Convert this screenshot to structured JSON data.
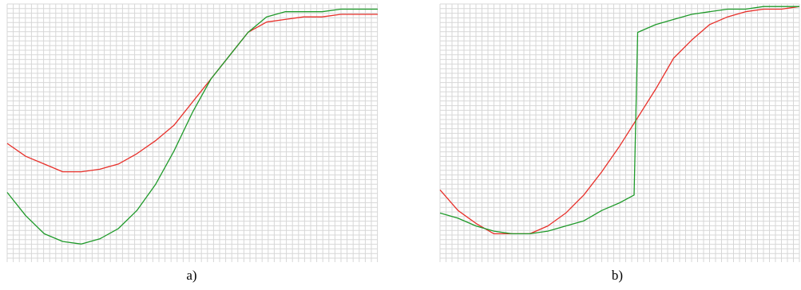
{
  "captions": {
    "a": "a)",
    "b": "b)"
  },
  "colors": {
    "red": "#e8302a",
    "green": "#1f9a2a",
    "grid": "#d7d7d7",
    "background": "#ffffff"
  },
  "chart_data": [
    {
      "type": "line",
      "title": "",
      "xlabel": "",
      "ylabel": "",
      "xlim": [
        0,
        1
      ],
      "ylim": [
        0,
        1
      ],
      "grid": true,
      "legend": "none",
      "series": [
        {
          "color": "#e8302a",
          "x": [
            0,
            0.05,
            0.1,
            0.15,
            0.2,
            0.25,
            0.3,
            0.35,
            0.4,
            0.45,
            0.5,
            0.55,
            0.6,
            0.65,
            0.7,
            0.75,
            0.8,
            0.85,
            0.9,
            0.95,
            1.0
          ],
          "y": [
            0.46,
            0.41,
            0.38,
            0.35,
            0.35,
            0.36,
            0.38,
            0.42,
            0.47,
            0.53,
            0.62,
            0.71,
            0.8,
            0.89,
            0.93,
            0.94,
            0.95,
            0.95,
            0.96,
            0.96,
            0.96
          ]
        },
        {
          "color": "#1f9a2a",
          "x": [
            0,
            0.05,
            0.1,
            0.15,
            0.2,
            0.25,
            0.3,
            0.35,
            0.4,
            0.45,
            0.5,
            0.55,
            0.6,
            0.65,
            0.7,
            0.75,
            0.8,
            0.85,
            0.9,
            0.95,
            1.0
          ],
          "y": [
            0.27,
            0.18,
            0.11,
            0.08,
            0.07,
            0.09,
            0.13,
            0.2,
            0.3,
            0.43,
            0.58,
            0.71,
            0.8,
            0.89,
            0.95,
            0.97,
            0.97,
            0.97,
            0.98,
            0.98,
            0.98
          ]
        }
      ]
    },
    {
      "type": "line",
      "title": "",
      "xlabel": "",
      "ylabel": "",
      "xlim": [
        0,
        1
      ],
      "ylim": [
        0,
        1
      ],
      "grid": true,
      "legend": "none",
      "series": [
        {
          "color": "#e8302a",
          "x": [
            0,
            0.05,
            0.1,
            0.15,
            0.2,
            0.25,
            0.3,
            0.35,
            0.4,
            0.45,
            0.5,
            0.55,
            0.6,
            0.65,
            0.7,
            0.75,
            0.8,
            0.85,
            0.9,
            0.95,
            1.0
          ],
          "y": [
            0.28,
            0.2,
            0.15,
            0.11,
            0.11,
            0.11,
            0.14,
            0.19,
            0.26,
            0.35,
            0.45,
            0.56,
            0.67,
            0.79,
            0.86,
            0.92,
            0.95,
            0.97,
            0.98,
            0.98,
            0.99
          ]
        },
        {
          "color": "#1f9a2a",
          "x": [
            0,
            0.05,
            0.1,
            0.15,
            0.2,
            0.25,
            0.3,
            0.35,
            0.4,
            0.45,
            0.5,
            0.54,
            0.55,
            0.6,
            0.65,
            0.7,
            0.75,
            0.8,
            0.85,
            0.9,
            0.95,
            1.0
          ],
          "y": [
            0.19,
            0.17,
            0.14,
            0.12,
            0.11,
            0.11,
            0.12,
            0.14,
            0.16,
            0.2,
            0.23,
            0.26,
            0.89,
            0.92,
            0.94,
            0.96,
            0.97,
            0.98,
            0.98,
            0.99,
            0.99,
            0.99
          ]
        }
      ]
    }
  ]
}
